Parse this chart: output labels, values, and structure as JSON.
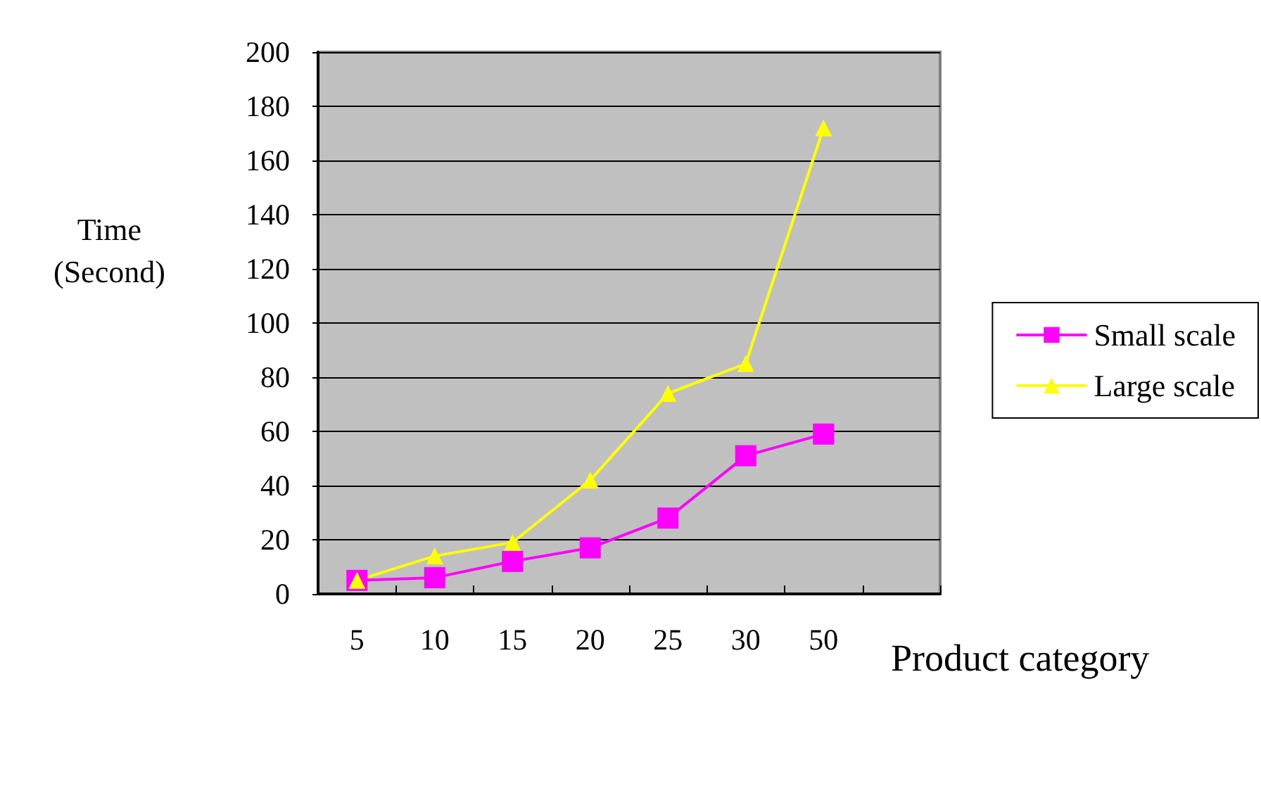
{
  "chart_data": {
    "type": "line",
    "xlabel": "Product category",
    "ylabel": "Time\n(Second)",
    "categories": [
      "5",
      "10",
      "15",
      "20",
      "25",
      "30",
      "50",
      null
    ],
    "series": [
      {
        "name": "Small scale",
        "color": "#ff00ff",
        "marker": "square",
        "values": [
          5,
          6,
          12,
          17,
          28,
          51,
          59,
          null
        ]
      },
      {
        "name": "Large scale",
        "color": "#ffff00",
        "marker": "triangle",
        "values": [
          5,
          14,
          19,
          42,
          74,
          85,
          172,
          null
        ]
      }
    ],
    "ylim": [
      0,
      200
    ],
    "yticks": [
      0,
      20,
      40,
      60,
      80,
      100,
      120,
      140,
      160,
      180,
      200
    ],
    "grid": "y",
    "legend": "right"
  }
}
